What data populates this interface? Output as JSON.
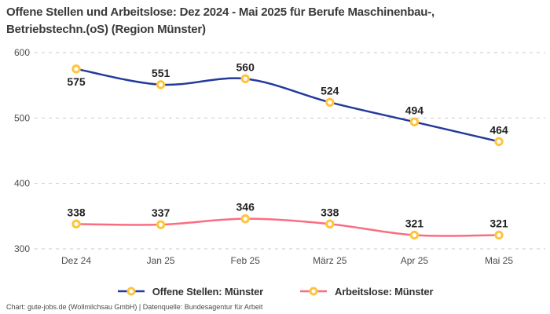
{
  "title_lines": {
    "line1": "Offene Stellen und Arbeitslose: Dez 2024 - Mai 2025 für Berufe Maschinenbau-,",
    "line2": "Betriebstechn.(oS) (Region Münster)"
  },
  "footer": "Chart: gute-jobs.de (Wollmilchsau GmbH) | Datenquelle: Bundesagentur für Arbeit",
  "colors": {
    "open_positions": "#243a9b",
    "unemployed": "#fa6d81",
    "marker": "#fec43d",
    "grid": "#c9c9c9",
    "axis_text": "#4d4d4d",
    "label_text": "#222222",
    "title_text": "#3a3a3a"
  },
  "chart_data": {
    "type": "line",
    "title": "Offene Stellen und Arbeitslose: Dez 2024 - Mai 2025 für Berufe Maschinenbau-, Betriebstechn.(oS) (Region Münster)",
    "categories": [
      "Dez 24",
      "Jan 25",
      "Feb 25",
      "März 25",
      "Apr 25",
      "Mai 25"
    ],
    "series": [
      {
        "name": "Offene Stellen: Münster",
        "values": [
          575,
          551,
          560,
          524,
          494,
          464
        ],
        "color_key": "open_positions"
      },
      {
        "name": "Arbeitslose: Münster",
        "values": [
          338,
          337,
          346,
          338,
          321,
          321
        ],
        "color_key": "unemployed"
      }
    ],
    "xlabel": "",
    "ylabel": "",
    "ylim": [
      300,
      600
    ],
    "yticks": [
      300,
      400,
      500,
      600
    ],
    "grid": "horizontal-dashed",
    "legend_position": "bottom",
    "marker_style": "yellow-ring"
  }
}
